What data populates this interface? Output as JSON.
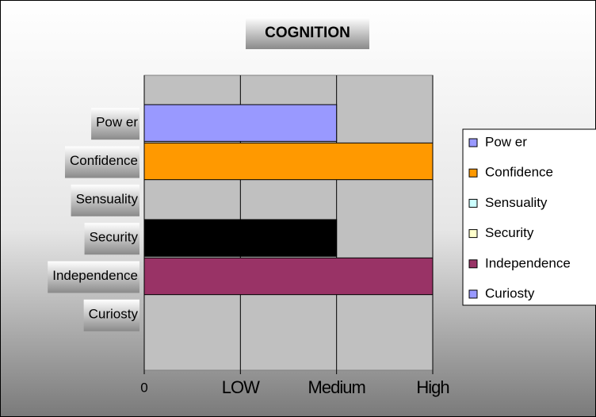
{
  "chart_data": {
    "type": "barh",
    "title": "COGNITION",
    "categories": [
      "Pow er",
      "Confidence",
      "Sensuality",
      "Security",
      "Independence",
      "Curiosty"
    ],
    "values": [
      2,
      3,
      0,
      2,
      3,
      0
    ],
    "colors": [
      "#9999ff",
      "#ff9900",
      "#ccffff",
      "#000000",
      "#993366",
      "#9999ff"
    ],
    "legend_colors": [
      "#9999ff",
      "#ff9900",
      "#ccffff",
      "#ffffcc",
      "#993366",
      "#9999ff"
    ],
    "xlim": [
      0,
      3
    ],
    "xticks": [
      0,
      {
        "value": 1,
        "label": "LOW"
      },
      {
        "value": 2,
        "label": "Medium"
      },
      {
        "value": 3,
        "label": "High"
      }
    ],
    "grid": true
  }
}
